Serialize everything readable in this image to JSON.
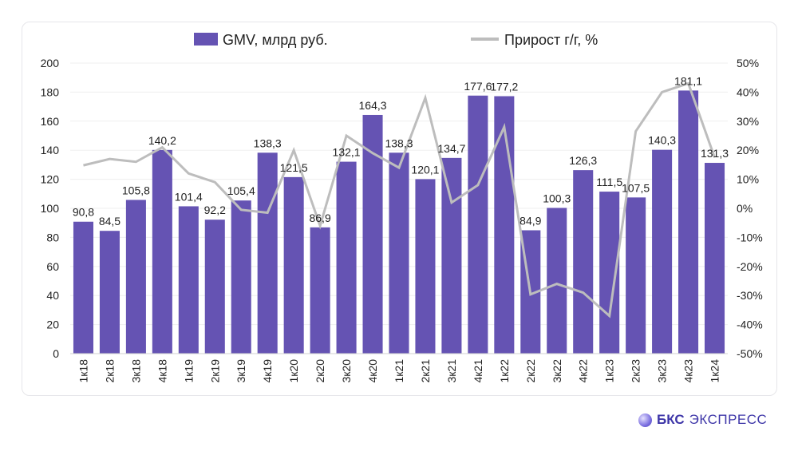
{
  "chart_data": {
    "type": "bar+line",
    "categories": [
      "1к18",
      "2к18",
      "3к18",
      "4к18",
      "1к19",
      "2к19",
      "3к19",
      "4к19",
      "1к20",
      "2к20",
      "3к20",
      "4к20",
      "1к21",
      "2к21",
      "3к21",
      "4к21",
      "1к22",
      "2к22",
      "3к22",
      "4к22",
      "1к23",
      "2к23",
      "3к23",
      "4к23",
      "1к24"
    ],
    "series": [
      {
        "name": "GMV, млрд руб.",
        "type": "bar",
        "axis": "left",
        "color": "#6553b3",
        "values": [
          90.8,
          84.5,
          105.8,
          140.2,
          101.4,
          92.2,
          105.4,
          138.3,
          121.5,
          86.9,
          132.1,
          164.3,
          138.3,
          120.1,
          134.7,
          177.6,
          177.2,
          84.9,
          100.3,
          126.3,
          111.5,
          107.5,
          140.3,
          181.1,
          131.3
        ],
        "labels": [
          "90,8",
          "84,5",
          "105,8",
          "140,2",
          "101,4",
          "92,2",
          "105,4",
          "138,3",
          "121,5",
          "86,9",
          "132,1",
          "164,3",
          "138,3",
          "120,1",
          "134,7",
          "177,6",
          "177,2",
          "84,9",
          "100,3",
          "126,3",
          "111,5",
          "107,5",
          "140,3",
          "181,1",
          "131,3"
        ]
      },
      {
        "name": "Прирост г/г, %",
        "type": "line",
        "axis": "right",
        "color": "#bdbdbd",
        "values": [
          14.8,
          17,
          16,
          21,
          12,
          9,
          -0.5,
          -1.5,
          20,
          -6,
          25,
          19,
          14,
          38,
          2,
          8,
          28,
          -29.6,
          -26,
          -29,
          -37,
          26.5,
          40,
          43,
          17.5
        ]
      }
    ],
    "left_axis": {
      "ylim": [
        0,
        200
      ],
      "ticks": [
        "0",
        "20",
        "40",
        "60",
        "80",
        "100",
        "120",
        "140",
        "160",
        "180",
        "200"
      ]
    },
    "right_axis": {
      "ylim": [
        -50,
        50
      ],
      "ticks": [
        "-50%",
        "-40%",
        "-30%",
        "-20%",
        "-10%",
        "0%",
        "10%",
        "20%",
        "30%",
        "40%",
        "50%"
      ]
    },
    "legend": "top",
    "grid": true
  },
  "logo": {
    "bold": "БКС",
    "text": "ЭКСПРЕСС"
  }
}
